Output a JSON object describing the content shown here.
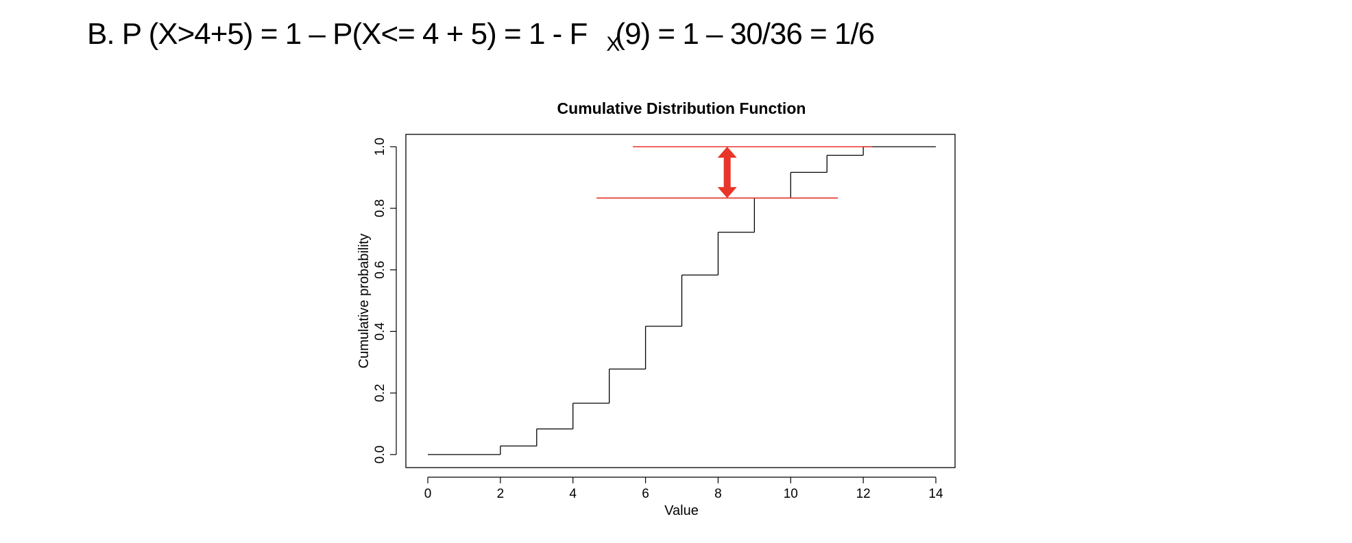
{
  "equation": {
    "main": "B.  P (X>4+5) = 1 – P(X<= 4 + 5) = 1 - F",
    "subscript": "X",
    "tail": "(9) = 1 – 30/36 = 1/6"
  },
  "chart_data": {
    "type": "step",
    "title": "Cumulative Distribution Function",
    "xlabel": "Value",
    "ylabel": "Cumulative probability",
    "xlim": [
      0,
      14
    ],
    "ylim": [
      0,
      1
    ],
    "x_ticks": [
      "0",
      "2",
      "4",
      "6",
      "8",
      "10",
      "12",
      "14"
    ],
    "y_ticks": [
      "0.0",
      "0.2",
      "0.4",
      "0.6",
      "0.8",
      "1.0"
    ],
    "grid": false,
    "steps": {
      "x": [
        0,
        2,
        3,
        4,
        5,
        6,
        7,
        8,
        9,
        10,
        11,
        12,
        14
      ],
      "y": [
        0,
        0.0278,
        0.0833,
        0.1667,
        0.2778,
        0.4167,
        0.5833,
        0.7222,
        0.8333,
        0.9167,
        0.9722,
        1.0,
        1.0
      ]
    },
    "annotations": {
      "upper_line": {
        "y": 1.0,
        "x_start": 5.65,
        "x_end": 12.25
      },
      "lower_line": {
        "y": 0.8333,
        "x_start": 4.65,
        "x_end": 11.3
      },
      "arrow": {
        "x": 8.25,
        "y_from": 0.8333,
        "y_to": 1.0
      },
      "highlight_color": "#e8352a"
    },
    "line_color": "#000000"
  }
}
